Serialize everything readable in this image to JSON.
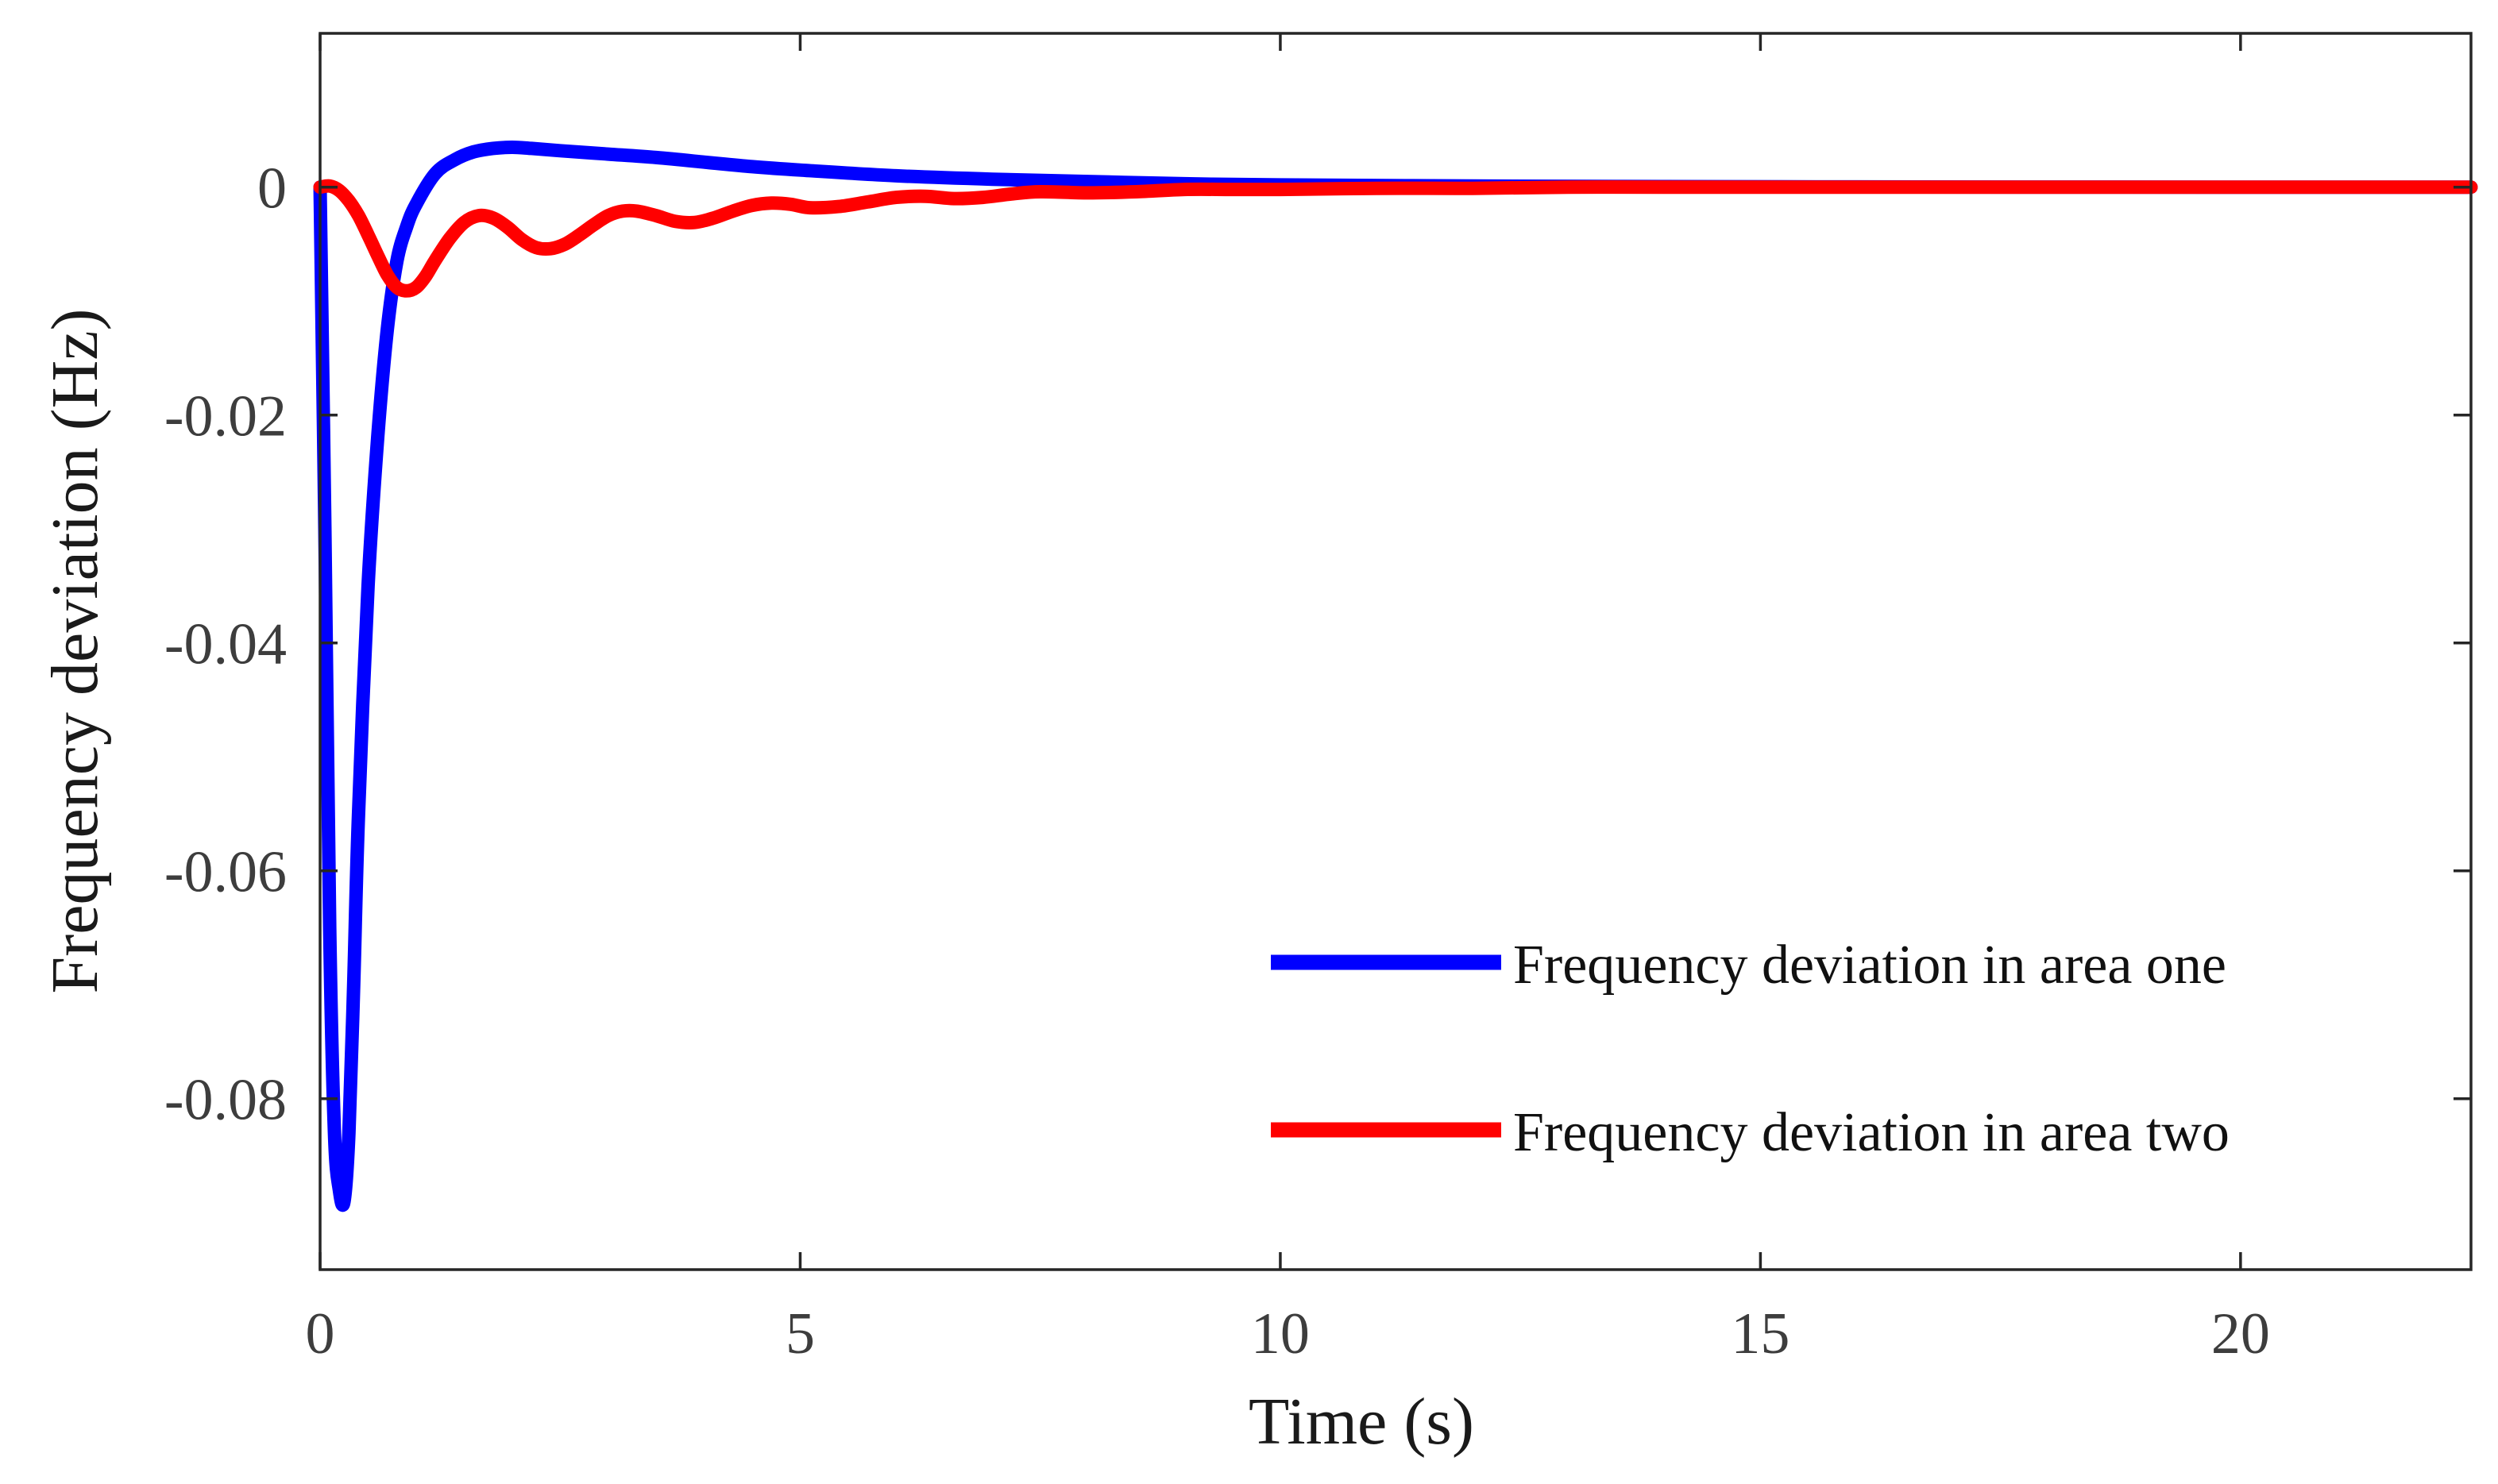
{
  "chart_data": {
    "type": "line",
    "title": "",
    "xlabel": "Time (s)",
    "ylabel": "Frequency deviation (Hz)",
    "xlim": [
      0,
      22.4
    ],
    "ylim": [
      -0.095,
      0.0135
    ],
    "xticks": [
      0,
      5,
      10,
      15,
      20
    ],
    "xtick_labels": [
      "0",
      "5",
      "10",
      "15",
      "20"
    ],
    "yticks": [
      0,
      -0.02,
      -0.04,
      -0.06,
      -0.08
    ],
    "ytick_labels": [
      "0",
      "-0.02",
      "-0.04",
      "-0.06",
      "-0.08"
    ],
    "grid": false,
    "legend_position": "bottom-right",
    "series": [
      {
        "name": "Frequency deviation in area one",
        "color": "#0000ff",
        "x": [
          0,
          0.05,
          0.1,
          0.15,
          0.2,
          0.25,
          0.3,
          0.35,
          0.4,
          0.5,
          0.6,
          0.7,
          0.8,
          0.9,
          1.0,
          1.2,
          1.4,
          1.6,
          1.8,
          2.0,
          2.2,
          2.5,
          3.0,
          3.5,
          4.0,
          4.5,
          5.0,
          6.0,
          7.0,
          8.0,
          9.0,
          10.0,
          12.0,
          14.0,
          16.0,
          18.0,
          20.0,
          22.4
        ],
        "y": [
          0,
          -0.03,
          -0.065,
          -0.083,
          -0.088,
          -0.089,
          -0.083,
          -0.07,
          -0.055,
          -0.035,
          -0.022,
          -0.0125,
          -0.0065,
          -0.0035,
          -0.0015,
          0.0012,
          0.0024,
          0.0031,
          0.0034,
          0.0035,
          0.0034,
          0.0032,
          0.0029,
          0.0026,
          0.0022,
          0.0018,
          0.0015,
          0.001,
          0.0007,
          0.0005,
          0.0003,
          0.0002,
          0.0001,
          5e-05,
          2e-05,
          1e-05,
          0,
          0
        ]
      },
      {
        "name": "Frequency deviation in area two",
        "color": "#ff0000",
        "x": [
          0,
          0.1,
          0.2,
          0.3,
          0.4,
          0.5,
          0.6,
          0.7,
          0.8,
          0.9,
          1.0,
          1.1,
          1.2,
          1.35,
          1.5,
          1.65,
          1.8,
          1.95,
          2.1,
          2.25,
          2.4,
          2.55,
          2.7,
          2.85,
          3.0,
          3.15,
          3.3,
          3.5,
          3.7,
          3.9,
          4.1,
          4.3,
          4.5,
          4.7,
          4.9,
          5.1,
          5.4,
          5.7,
          6.0,
          6.3,
          6.6,
          6.9,
          7.2,
          7.5,
          8.0,
          8.5,
          9.0,
          9.5,
          10.0,
          11.0,
          12.0,
          13.0,
          14.0,
          16.0,
          18.0,
          20.0,
          22.4
        ],
        "y": [
          0,
          0.0001,
          -0.0003,
          -0.0012,
          -0.0025,
          -0.0042,
          -0.006,
          -0.0077,
          -0.0088,
          -0.0091,
          -0.0088,
          -0.0078,
          -0.0064,
          -0.0045,
          -0.0031,
          -0.0025,
          -0.0027,
          -0.0035,
          -0.0046,
          -0.0053,
          -0.0054,
          -0.005,
          -0.0042,
          -0.0033,
          -0.0025,
          -0.0021,
          -0.0021,
          -0.0025,
          -0.003,
          -0.0031,
          -0.0027,
          -0.0021,
          -0.0016,
          -0.0014,
          -0.0015,
          -0.0018,
          -0.0017,
          -0.0013,
          -0.0009,
          -0.0008,
          -0.001,
          -0.0009,
          -0.0006,
          -0.0004,
          -0.0005,
          -0.0004,
          -0.0002,
          -0.0002,
          -0.0002,
          -0.0001,
          -0.0001,
          0,
          0,
          0,
          0,
          0,
          0
        ]
      }
    ]
  }
}
